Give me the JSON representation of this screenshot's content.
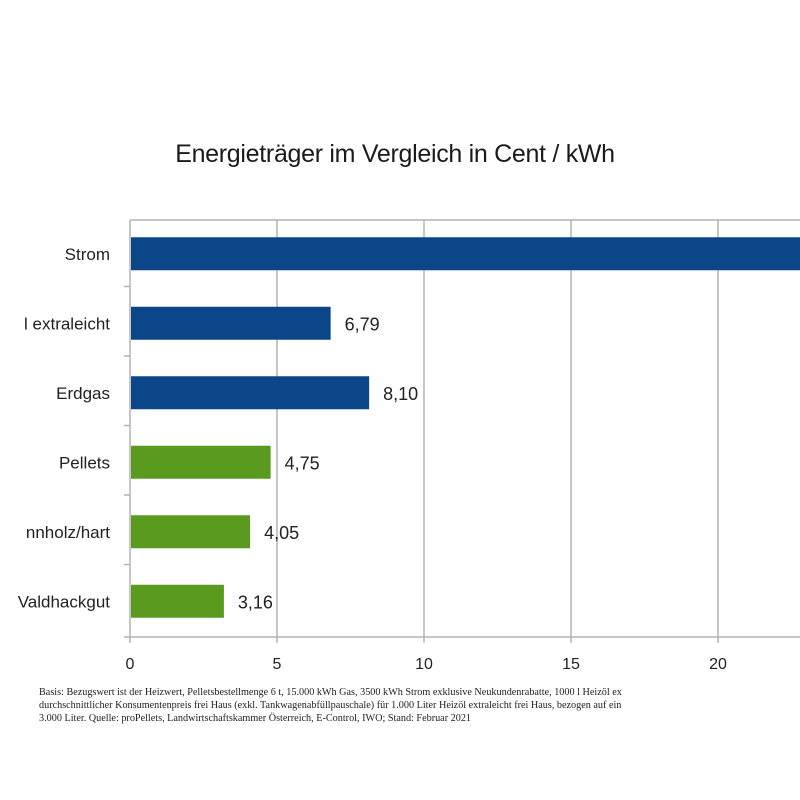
{
  "chart_data": {
    "type": "bar",
    "orientation": "horizontal",
    "title": "Energieträger im Vergleich in Cent / kWh",
    "xlabel": "",
    "ylabel": "",
    "categories": [
      "Strom",
      "Heizöl extraleicht",
      "Erdgas",
      "Pellets",
      "Brennholz/hart",
      "Waldhackgut"
    ],
    "visible_category_labels": [
      "Strom",
      "l extraleicht",
      "Erdgas",
      "Pellets",
      "nnholz/hart",
      "Valdhackgut"
    ],
    "values": [
      null,
      6.79,
      8.1,
      4.75,
      4.05,
      3.16
    ],
    "value_labels": [
      "",
      "6,79",
      "8,10",
      "4,75",
      "4,05",
      "3,16"
    ],
    "note": "Strom bar extends beyond the visible area; its value label is cut off",
    "bar_colors": [
      "#0b4689",
      "#0b4689",
      "#0b4689",
      "#5a9b1f",
      "#5a9b1f",
      "#5a9b1f"
    ],
    "xticks": [
      0,
      5,
      10,
      15,
      20
    ],
    "xtick_labels": [
      "0",
      "5",
      "10",
      "15",
      "20"
    ],
    "xlim": [
      0,
      22.9
    ],
    "grid": true,
    "legend": "none"
  },
  "footnote": {
    "lines": [
      "Basis: Bezugswert ist der Heizwert, Pelletsbestellmenge 6 t, 15.000 kWh Gas, 3500 kWh Strom exklusive Neukundenrabatte, 1000 l Heizöl ex",
      "durchschnittlicher Konsumentenpreis frei Haus (exkl. Tankwagenabfüllpauschale) für 1.000 Liter Heizöl extraleicht frei Haus, bezogen auf ein",
      "3.000 Liter. Quelle: proPellets, Landwirtschaftskammer Österreich, E-Control, IWO; Stand: Februar 2021"
    ]
  }
}
